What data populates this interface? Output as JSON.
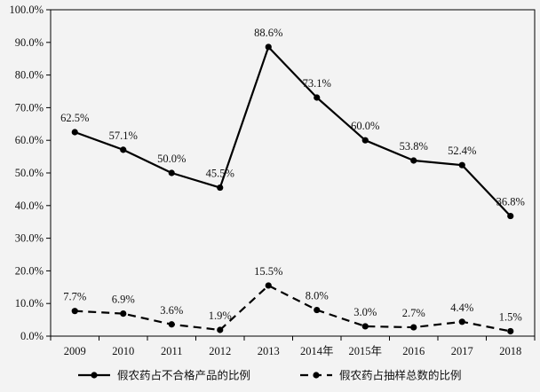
{
  "chart_data": {
    "type": "line",
    "title": "",
    "xlabel": "",
    "ylabel": "",
    "categories": [
      "2009",
      "2010",
      "2011",
      "2012",
      "2013",
      "2014年",
      "2015年",
      "2016",
      "2017",
      "2018"
    ],
    "ylim": [
      0,
      100
    ],
    "yticks": [
      "0.0%",
      "10.0%",
      "20.0%",
      "30.0%",
      "40.0%",
      "50.0%",
      "60.0%",
      "70.0%",
      "80.0%",
      "90.0%",
      "100.0%"
    ],
    "grid": false,
    "legend_position": "bottom",
    "series": [
      {
        "name": "假农药占不合格产品的比例",
        "values": [
          62.5,
          57.1,
          50.0,
          45.5,
          88.6,
          73.1,
          60.0,
          53.8,
          52.4,
          36.8
        ],
        "labels": [
          "62.5%",
          "57.1%",
          "50.0%",
          "45.5%",
          "88.6%",
          "73.1%",
          "60.0%",
          "53.8%",
          "52.4%",
          "36.8%"
        ],
        "style": "solid",
        "color": "#000000"
      },
      {
        "name": "假农药占抽样总数的比例",
        "values": [
          7.7,
          6.9,
          3.6,
          1.9,
          15.5,
          8.0,
          3.0,
          2.7,
          4.4,
          1.5
        ],
        "labels": [
          "7.7%",
          "6.9%",
          "3.6%",
          "1.9%",
          "15.5%",
          "8.0%",
          "3.0%",
          "2.7%",
          "4.4%",
          "1.5%"
        ],
        "style": "dashed",
        "color": "#000000"
      }
    ]
  }
}
